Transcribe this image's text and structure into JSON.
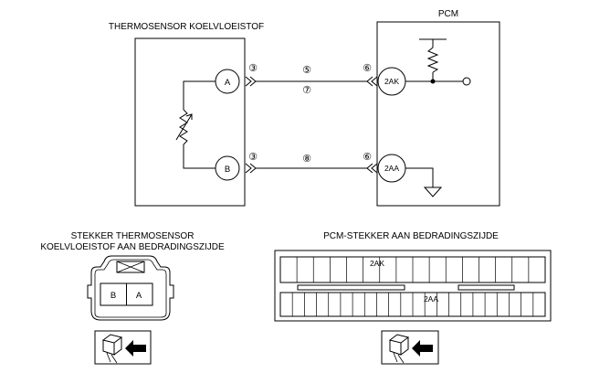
{
  "sensor": {
    "title": "THERMOSENSOR KOELVLOEISTOF",
    "pin_a": "A",
    "pin_b": "B",
    "connector_pin_a": "③",
    "connector_pin_b": "③"
  },
  "wires": {
    "upper_label_1": "⑤",
    "upper_label_2": "⑦",
    "lower_label": "⑧"
  },
  "pcm": {
    "title": "PCM",
    "terminal_2ak": "2AK",
    "terminal_2aa": "2AA",
    "connector_pin_2ak": "⑥",
    "connector_pin_2aa": "⑥"
  },
  "sensor_connector": {
    "title_line1": "STEKKER THERMOSENSOR",
    "title_line2": "KOELVLOEISTOF AAN BEDRADINGSZIJDE",
    "cavity_left": "B",
    "cavity_right": "A"
  },
  "pcm_connector": {
    "title": "PCM-STEKKER AAN BEDRADINGSZIJDE",
    "row_top_label": "2AK",
    "row_bottom_label": "2AA"
  }
}
